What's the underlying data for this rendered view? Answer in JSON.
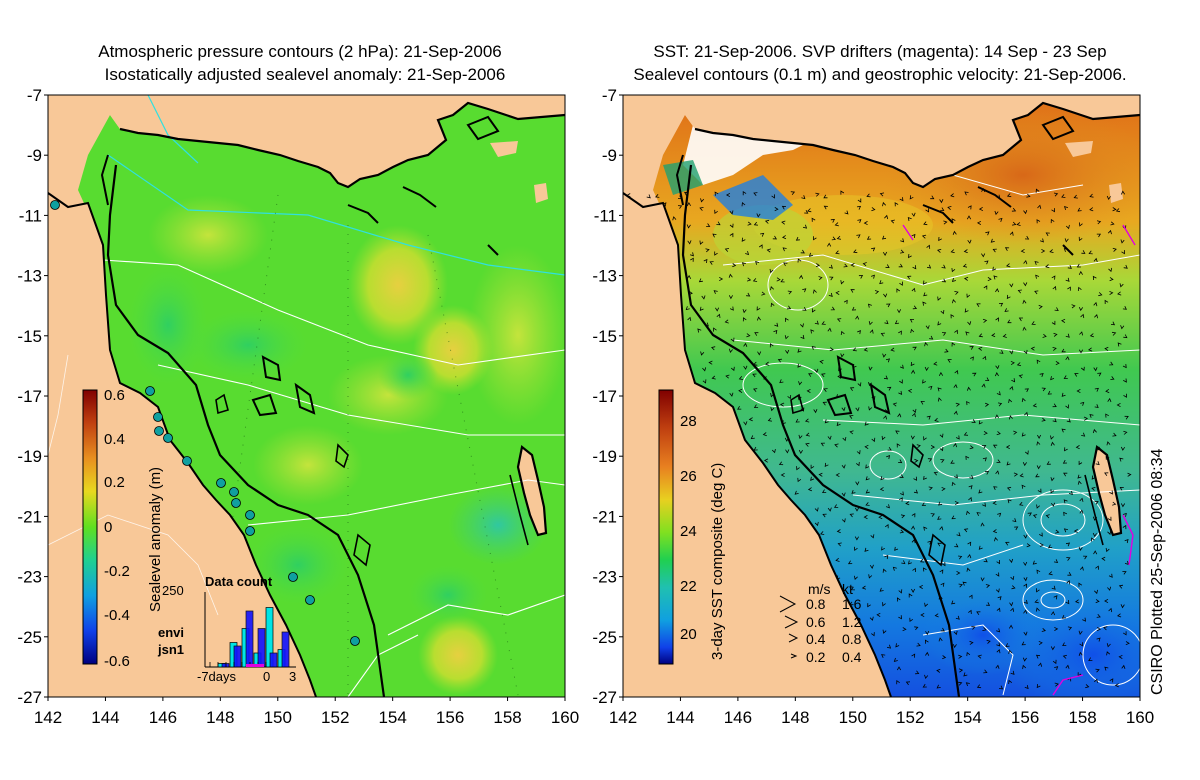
{
  "left_panel": {
    "title_line1": "Atmospheric pressure contours (2 hPa): 21-Sep-2006",
    "title_line2": "Isostatically adjusted sealevel anomaly: 21-Sep-2006",
    "colorbar": {
      "label": "Sealevel anomaly (m)",
      "ticks": [
        "0.6",
        "0.4",
        "0.2",
        "0",
        "-0.2",
        "-0.4",
        "-0.6"
      ]
    },
    "data_count": {
      "title": "Data count",
      "ymax_label": "250",
      "xlabel_left": "-7days",
      "xlabel_mid": "0",
      "xlabel_right": "3",
      "legend_envi": "envi",
      "legend_jsn1": "jsn1",
      "envi_color": "#00e5e5",
      "jsn1_color": "#1010ff",
      "envi_values": [
        0.05,
        0.35,
        0.55,
        0.2,
        0.85,
        0.25
      ],
      "jsn1_values": [
        0.05,
        0.3,
        0.8,
        0.55,
        0.2,
        0.5
      ]
    }
  },
  "right_panel": {
    "title_line1": "SST: 21-Sep-2006. SVP drifters (magenta): 14 Sep - 23 Sep",
    "title_line2": "Sealevel contours (0.1 m) and geostrophic velocity: 21-Sep-2006.",
    "colorbar": {
      "label": "3-day SST composite (deg C)",
      "ticks": [
        "28",
        "26",
        "24",
        "22",
        "20"
      ]
    },
    "velocity_legend": {
      "header_ms": "m/s",
      "header_kt": "kt",
      "rows": [
        {
          "ms": "0.8",
          "kt": "1.6"
        },
        {
          "ms": "0.6",
          "kt": "1.2"
        },
        {
          "ms": "0.4",
          "kt": "0.8"
        },
        {
          "ms": "0.2",
          "kt": "0.4"
        }
      ]
    }
  },
  "axes": {
    "x_ticks": [
      "142",
      "144",
      "146",
      "148",
      "150",
      "152",
      "154",
      "156",
      "158",
      "160"
    ],
    "y_ticks": [
      "-7",
      "-9",
      "-11",
      "-13",
      "-15",
      "-17",
      "-19",
      "-21",
      "-23",
      "-25",
      "-27"
    ],
    "lon_range": [
      142,
      160
    ],
    "lat_range": [
      -27,
      -7
    ]
  },
  "credit": "CSIRO Plotted 25-Sep-2006 08:34",
  "colors": {
    "land": "#f8c898",
    "coast": "#000000",
    "contour": "#ffffff",
    "pressure_contour": "#30e0e0",
    "drifter": "#e000e0"
  }
}
